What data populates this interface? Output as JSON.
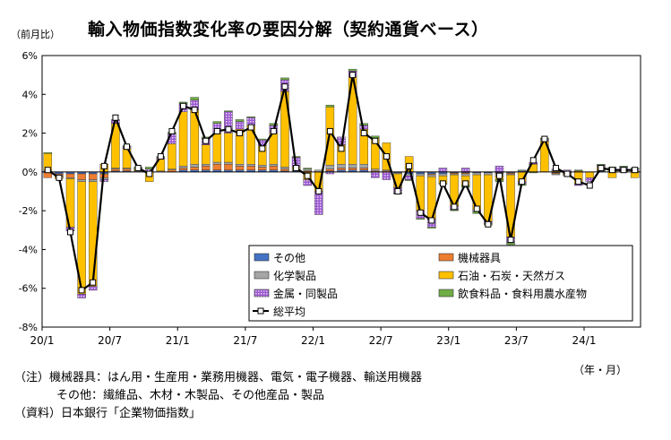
{
  "title": "輸入物価指数変化率の要因分解（契約通貨ベース）",
  "unit_label": "（前月比）",
  "period_label": "（年・月）",
  "notes": {
    "note_line1": "（注）機械器具：はん用・生産用・業務用機器、電気・電子機器、輸送用機器",
    "note_line2": "その他：繊維品、木材・木製品、その他産品・製品",
    "source_line": "（資料）日本銀行「企業物価指数」"
  },
  "chart_data": {
    "type": "bar",
    "stacked": true,
    "ylim": [
      -8,
      6
    ],
    "yticks": [
      -8,
      -6,
      -4,
      -2,
      0,
      2,
      4,
      6
    ],
    "ytick_labels": [
      "-8%",
      "-6%",
      "-4%",
      "-2%",
      "0%",
      "2%",
      "4%",
      "6%"
    ],
    "xtick_labels": [
      {
        "label": "20/1",
        "index": 0
      },
      {
        "label": "20/7",
        "index": 6
      },
      {
        "label": "21/1",
        "index": 12
      },
      {
        "label": "21/7",
        "index": 18
      },
      {
        "label": "22/1",
        "index": 24
      },
      {
        "label": "22/7",
        "index": 30
      },
      {
        "label": "23/1",
        "index": 36
      },
      {
        "label": "23/7",
        "index": 42
      },
      {
        "label": "24/1",
        "index": 48
      }
    ],
    "grid": false,
    "legend_position": "bottom-right",
    "colors": {
      "other": "#4472c4",
      "machinery": "#ed7d31",
      "chemicals": "#a5a5a5",
      "oil": "#ffc000",
      "metals": "#9b59d0",
      "food": "#70ad47",
      "total": "#000000"
    },
    "categories": [
      "20/1",
      "20/2",
      "20/3",
      "20/4",
      "20/5",
      "20/6",
      "20/7",
      "20/8",
      "20/9",
      "20/10",
      "20/11",
      "20/12",
      "21/1",
      "21/2",
      "21/3",
      "21/4",
      "21/5",
      "21/6",
      "21/7",
      "21/8",
      "21/9",
      "21/10",
      "21/11",
      "21/12",
      "22/1",
      "22/2",
      "22/3",
      "22/4",
      "22/5",
      "22/6",
      "22/7",
      "22/8",
      "22/9",
      "22/10",
      "22/11",
      "22/12",
      "23/1",
      "23/2",
      "23/3",
      "23/4",
      "23/5",
      "23/6",
      "23/7",
      "23/8",
      "23/9",
      "23/10",
      "23/11",
      "23/12",
      "24/1",
      "24/2",
      "24/3",
      "24/4",
      "24/5"
    ],
    "series": [
      {
        "name": "その他",
        "key": "other",
        "values": [
          0.05,
          -0.1,
          -0.1,
          -0.1,
          -0.1,
          -0.1,
          0.05,
          0.05,
          0,
          0,
          0,
          0,
          0.1,
          0.1,
          0.1,
          0.1,
          0.1,
          0.1,
          0.1,
          0.1,
          0.1,
          0.05,
          0.05,
          0,
          0,
          0.05,
          0.1,
          0.1,
          0.1,
          0,
          0,
          -0.05,
          -0.1,
          -0.1,
          -0.1,
          -0.1,
          -0.05,
          -0.05,
          -0.05,
          -0.05,
          -0.05,
          -0.05,
          0.05,
          0,
          0,
          -0.05,
          -0.05,
          0,
          0,
          0.05,
          0,
          0,
          0
        ]
      },
      {
        "name": "機械器具",
        "key": "machinery",
        "values": [
          -0.3,
          -0.1,
          -0.2,
          -0.3,
          -0.3,
          -0.2,
          0.1,
          0.1,
          0,
          0,
          0,
          0.1,
          0.1,
          0.15,
          0.2,
          0.3,
          0.3,
          0.2,
          0.2,
          0.15,
          0.2,
          0.1,
          0,
          0.05,
          0,
          0.1,
          0.1,
          0.1,
          0.1,
          0.05,
          0.05,
          0,
          0,
          0,
          -0.05,
          0,
          -0.05,
          -0.05,
          0,
          0,
          -0.05,
          -0.05,
          0,
          0,
          0,
          -0.05,
          -0.05,
          0.05,
          0,
          0.05,
          0.05,
          0.05,
          0.05
        ]
      },
      {
        "name": "化学製品",
        "key": "chemicals",
        "values": [
          0.05,
          -0.05,
          -0.05,
          -0.1,
          -0.1,
          -0.1,
          0.05,
          0.05,
          0.05,
          0.05,
          0.05,
          0.05,
          0.1,
          0.15,
          0.1,
          0.1,
          0.1,
          0.1,
          0.1,
          0.1,
          0.1,
          0.1,
          0.1,
          0.1,
          0.1,
          0.2,
          0.2,
          0.2,
          0.2,
          0.1,
          0.05,
          -0.05,
          -0.1,
          -0.1,
          -0.1,
          -0.1,
          -0.05,
          -0.1,
          -0.1,
          -0.1,
          -0.1,
          -0.05,
          0.05,
          0,
          0,
          -0.05,
          -0.05,
          0,
          0,
          0.05,
          0.05,
          0,
          0
        ]
      },
      {
        "name": "石油・石炭・天然ガス",
        "key": "oil",
        "values": [
          0.85,
          -0.1,
          -2.5,
          -5.8,
          -5.4,
          0.4,
          2.3,
          1.0,
          0.1,
          -0.5,
          0.6,
          1.3,
          2.8,
          2.8,
          1.0,
          1.5,
          1.5,
          1.8,
          2.0,
          1.0,
          1.6,
          3.9,
          0.1,
          -0.4,
          -1.0,
          3.0,
          1.0,
          4.5,
          1.8,
          1.6,
          1.4,
          -0.7,
          0.8,
          -1.8,
          -2.2,
          -0.4,
          -1.6,
          -0.5,
          -1.8,
          -2.4,
          -0.2,
          -3.2,
          -0.5,
          0.4,
          1.6,
          0.05,
          -0.05,
          -0.6,
          -0.3,
          0.1,
          -0.3,
          0.1,
          -0.3
        ]
      },
      {
        "name": "金属・同製品",
        "key": "metals",
        "values": [
          0,
          0,
          -0.2,
          -0.2,
          -0.2,
          -0.1,
          0.2,
          0.1,
          0,
          0.1,
          0.1,
          0.5,
          0.4,
          0.5,
          0.3,
          0.5,
          1.1,
          0.4,
          0.4,
          0.3,
          0.4,
          0.6,
          0.5,
          -0.3,
          -1.2,
          -0.1,
          0.4,
          0.3,
          0.2,
          -0.3,
          -0.4,
          -0.3,
          -0.2,
          -0.4,
          -0.4,
          0.2,
          -0.2,
          0.2,
          -0.1,
          -0.1,
          0.3,
          -0.3,
          -0.1,
          0.1,
          0.1,
          0.1,
          0.1,
          -0.1,
          -0.2,
          0.1,
          0.1,
          0.1,
          0.1
        ]
      },
      {
        "name": "飲食料品・食料用農水産物",
        "key": "food",
        "values": [
          0.05,
          0,
          0,
          0,
          0,
          0,
          0,
          0.05,
          0.1,
          0.1,
          0.05,
          0.1,
          0.1,
          0.15,
          0.1,
          0.1,
          0.05,
          0.1,
          0.05,
          0.05,
          0.1,
          0.1,
          0.05,
          0.05,
          0,
          0.1,
          0,
          0.1,
          0.1,
          0.1,
          0,
          -0.05,
          -0.05,
          -0.05,
          -0.05,
          -0.05,
          -0.05,
          -0.1,
          -0.1,
          -0.1,
          -0.1,
          -0.1,
          -0.1,
          -0.05,
          0.05,
          0,
          0,
          0.05,
          0,
          0.05,
          0.05,
          0.05,
          0.05
        ]
      }
    ],
    "total": {
      "name": "総平均",
      "key": "total",
      "values": [
        0.1,
        -0.3,
        -3.1,
        -6.1,
        -5.7,
        0.3,
        2.8,
        1.3,
        0.2,
        -0.1,
        0.8,
        2.1,
        3.4,
        3.2,
        1.6,
        2.1,
        2.2,
        2.0,
        2.3,
        1.2,
        2.1,
        4.4,
        0.2,
        -0.2,
        -1.0,
        2.1,
        1.2,
        5.0,
        2.0,
        1.6,
        0.8,
        -1.0,
        0.3,
        -2.1,
        -2.5,
        -0.6,
        -1.8,
        -0.6,
        -1.9,
        -2.7,
        -0.2,
        -3.5,
        -0.5,
        0.6,
        1.7,
        0.2,
        -0.1,
        -0.5,
        -0.7,
        0.2,
        0.1,
        0.1,
        0.1
      ]
    }
  }
}
